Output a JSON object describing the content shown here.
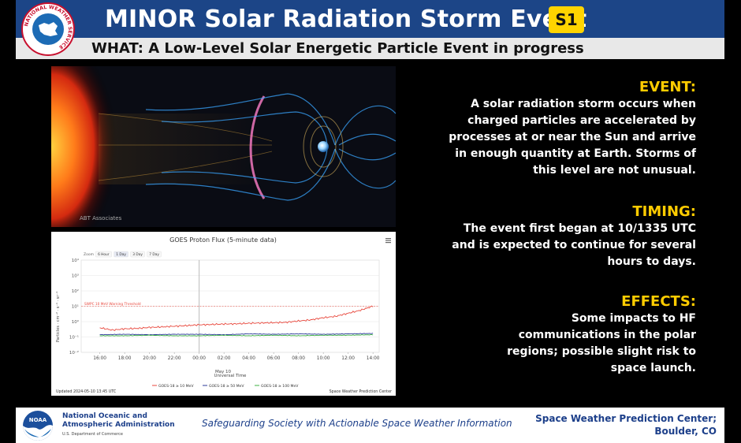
{
  "header": {
    "logo_text": "NATIONAL WEATHER SERVICE",
    "title": "MINOR Solar Radiation Storm Event",
    "scale": "S1",
    "subtitle": "WHAT: A Low-Level Solar Energetic Particle Event in progress"
  },
  "illustration": {
    "credit": "ABT Associates"
  },
  "graph": {
    "title": "GOES Proton Flux (5-minute data)",
    "zoom_label": "Zoom",
    "zoom_buttons": [
      "6 Hour",
      "1 Day",
      "3 Day",
      "7 Day"
    ],
    "threshold_label": "SWPC 10 MeV Warning Threshold",
    "x_title": "Universal Time",
    "date_label": "May 10",
    "y_title": "Particles · cm⁻² · s⁻¹ · sr⁻¹",
    "updated": "Updated 2024-05-10 13:45 UTC",
    "credit": "Space Weather Prediction Center",
    "menu_icon": "hamburger-icon"
  },
  "chart_data": {
    "type": "line",
    "title": "GOES Proton Flux (5-minute data)",
    "xlabel": "Universal Time",
    "ylabel": "Particles · cm⁻² · s⁻¹ · sr⁻¹",
    "x_ticks": [
      "16:00",
      "18:00",
      "20:00",
      "22:00",
      "00:00",
      "02:00",
      "04:00",
      "06:00",
      "08:00",
      "10:00",
      "12:00",
      "14:00"
    ],
    "y_ticks": [
      "10⁴",
      "10³",
      "10²",
      "10¹",
      "10⁰",
      "10⁻¹",
      "10⁻²"
    ],
    "ylim_log10": [
      -2,
      4
    ],
    "threshold": 10,
    "series": [
      {
        "name": "GOES-18 ≥ 10 MeV",
        "color": "#e8473c",
        "hours": [
          0,
          1,
          2,
          3,
          4,
          5,
          6,
          7,
          8,
          9,
          10,
          11,
          12,
          13,
          14,
          15,
          16,
          17,
          18,
          19,
          20,
          21,
          21.5,
          22
        ],
        "values": [
          0.4,
          0.28,
          0.34,
          0.36,
          0.42,
          0.45,
          0.5,
          0.55,
          0.62,
          0.65,
          0.7,
          0.72,
          0.78,
          0.82,
          0.85,
          0.9,
          1.1,
          1.3,
          1.8,
          2.2,
          3.5,
          5.5,
          7.5,
          10.2
        ]
      },
      {
        "name": "GOES-18 ≥ 50 MeV",
        "color": "#2b3a9a",
        "hours": [
          0,
          2,
          4,
          6,
          8,
          10,
          12,
          14,
          16,
          18,
          20,
          22
        ],
        "values": [
          0.14,
          0.15,
          0.14,
          0.15,
          0.15,
          0.14,
          0.16,
          0.15,
          0.16,
          0.15,
          0.16,
          0.17
        ]
      },
      {
        "name": "GOES-18 ≥ 100 MeV",
        "color": "#3cb043",
        "hours": [
          0,
          2,
          4,
          6,
          8,
          10,
          12,
          14,
          16,
          18,
          20,
          22
        ],
        "values": [
          0.12,
          0.12,
          0.13,
          0.12,
          0.12,
          0.13,
          0.12,
          0.13,
          0.12,
          0.13,
          0.13,
          0.14
        ]
      }
    ]
  },
  "event": {
    "heading": "EVENT:",
    "lines": [
      "A solar radiation storm occurs when",
      "charged particles are accelerated by",
      "processes at or near the Sun and arrive",
      "in enough quantity at Earth. Storms of",
      "this level are not unusual."
    ]
  },
  "timing": {
    "heading": "TIMING:",
    "lines": [
      "The event first began at 10/1335 UTC",
      "and is expected to continue for several",
      "hours to days."
    ]
  },
  "effects": {
    "heading": "EFFECTS:",
    "lines": [
      "Some impacts to HF",
      "communications in the polar",
      "regions; possible slight risk to",
      "space launch."
    ]
  },
  "footer": {
    "noaa_logo_text": "NOAA",
    "noaa_name_1": "National Oceanic and",
    "noaa_name_2": "Atmospheric Administration",
    "noaa_dept": "U.S. Department of Commerce",
    "tagline": "Safeguarding Society with Actionable Space Weather Information",
    "swpc_1": "Space Weather Prediction Center;",
    "swpc_2": "Boulder, CO"
  }
}
